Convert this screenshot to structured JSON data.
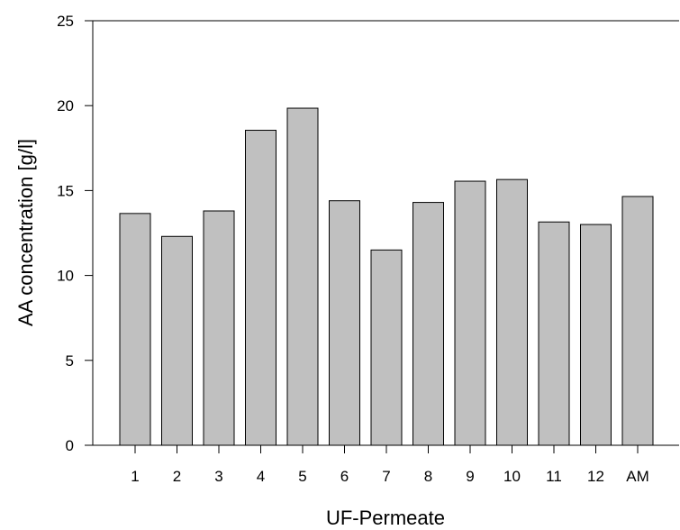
{
  "chart_data": {
    "type": "bar",
    "title": "",
    "xlabel": "UF-Permeate",
    "ylabel": "AA concentration [g/l]",
    "categories": [
      "1",
      "2",
      "3",
      "4",
      "5",
      "6",
      "7",
      "8",
      "9",
      "10",
      "11",
      "12",
      "AM"
    ],
    "values": [
      13.65,
      12.3,
      13.8,
      18.55,
      19.85,
      14.4,
      11.5,
      14.3,
      15.55,
      15.65,
      13.15,
      13.0,
      14.65
    ],
    "ylim": [
      0,
      25
    ],
    "yticks": [
      "0",
      "5",
      "10",
      "15",
      "20",
      "25"
    ],
    "grid": false,
    "legend": "none",
    "bar_color": "#c0c0c0",
    "bar_edge_color": "#000000"
  }
}
